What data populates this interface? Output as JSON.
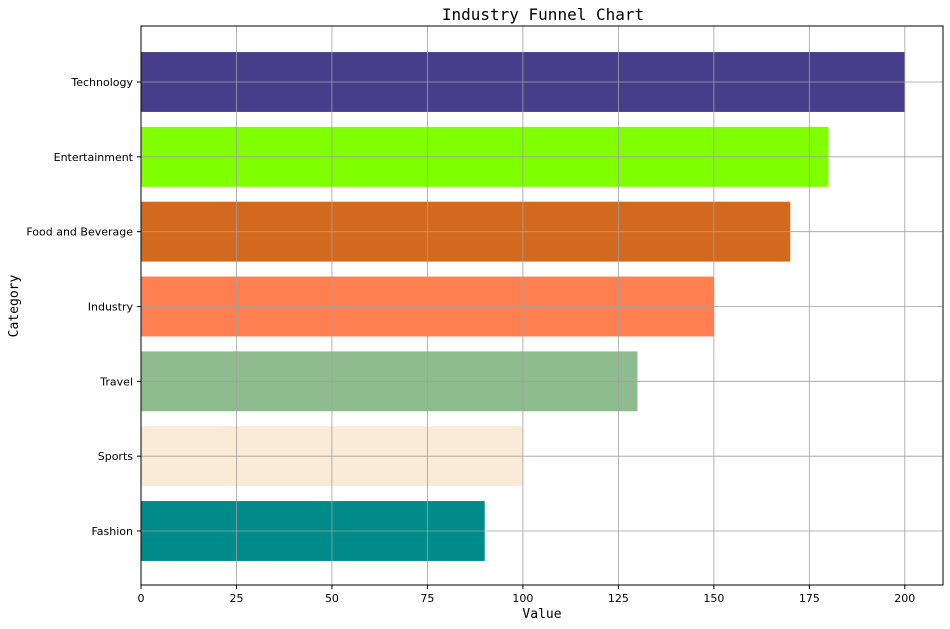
{
  "chart_data": {
    "type": "bar",
    "orientation": "horizontal",
    "title": "Industry Funnel Chart",
    "xlabel": "Value",
    "ylabel": "Category",
    "categories": [
      "Technology",
      "Entertainment",
      "Food and Beverage",
      "Industry",
      "Travel",
      "Sports",
      "Fashion"
    ],
    "values": [
      200,
      180,
      170,
      150,
      130,
      100,
      90
    ],
    "colors": [
      "#483D8B",
      "#7FFF00",
      "#D2691E",
      "#FF7F50",
      "#8FBC8F",
      "#FAEBD7",
      "#008B8B"
    ],
    "xlim": [
      0,
      210
    ],
    "xticks": [
      0,
      25,
      50,
      75,
      100,
      125,
      150,
      175,
      200
    ],
    "grid": true
  }
}
